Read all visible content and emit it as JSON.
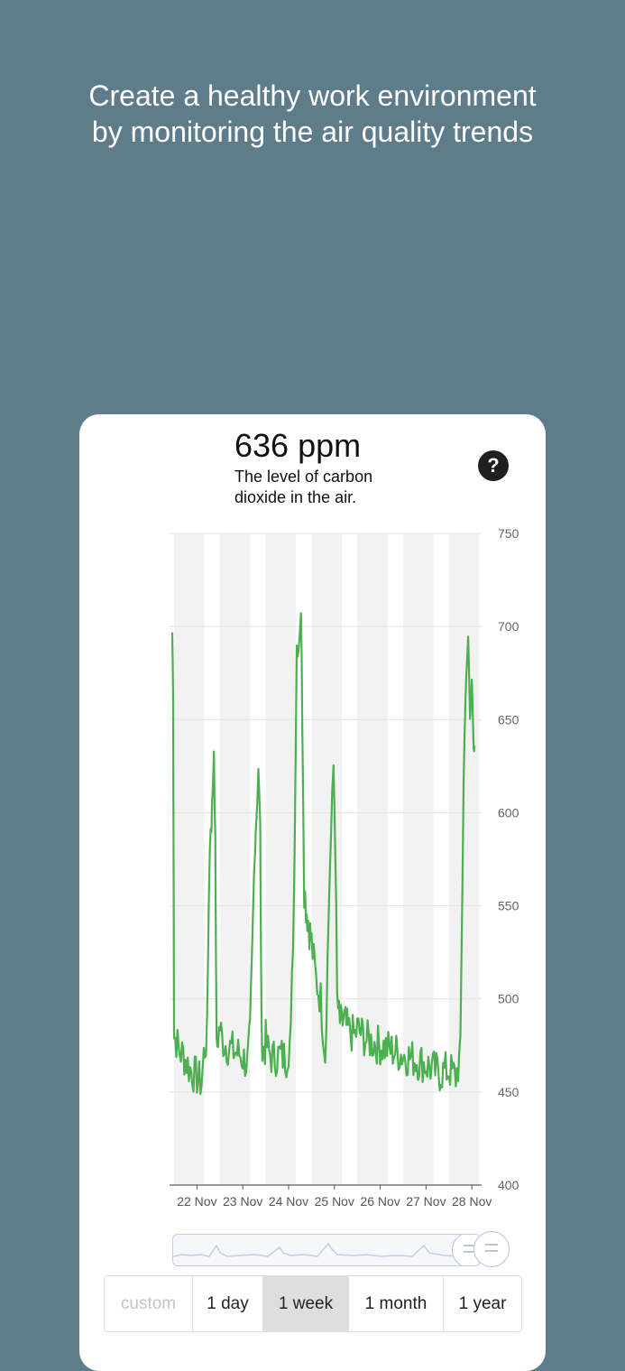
{
  "headline": "Create a healthy work environment by monitoring the air quality trends",
  "reading": {
    "value": "636 ppm",
    "description": "The level of carbon dioxide in the air."
  },
  "help_label": "?",
  "colors": {
    "background": "#5f7c8a",
    "line": "#4caf50",
    "band": "#f2f2f2",
    "active_range": "#dedede"
  },
  "range_buttons": [
    {
      "label": "custom",
      "state": "disabled"
    },
    {
      "label": "1 day",
      "state": "normal"
    },
    {
      "label": "1 week",
      "state": "active"
    },
    {
      "label": "1 month",
      "state": "normal"
    },
    {
      "label": "1 year",
      "state": "normal"
    }
  ],
  "chart_data": {
    "type": "line",
    "title": "",
    "xlabel": "",
    "ylabel": "",
    "ylim": [
      400,
      750
    ],
    "y_ticks": [
      750,
      700,
      650,
      600,
      550,
      500,
      450,
      400
    ],
    "x_ticks": [
      "22 Nov",
      "23 Nov",
      "24 Nov",
      "25 Nov",
      "26 Nov",
      "27 Nov",
      "28 Nov"
    ],
    "grid": true,
    "legend": "none",
    "x_unit": "days since start of window (0 = 22 Nov 00:00)",
    "series": [
      {
        "name": "CO2",
        "x": [
          -0.04,
          -0.02,
          0.0,
          0.05,
          0.1,
          0.2,
          0.35,
          0.5,
          0.6,
          0.65,
          0.72,
          0.76,
          0.8,
          0.83,
          0.87,
          0.9,
          0.93,
          0.96,
          1.0,
          1.05,
          1.15,
          1.3,
          1.45,
          1.6,
          1.66,
          1.72,
          1.77,
          1.8,
          1.84,
          1.88,
          1.91,
          1.94,
          1.97,
          2.0,
          2.05,
          2.15,
          2.3,
          2.45,
          2.55,
          2.62,
          2.68,
          2.72,
          2.77,
          2.8,
          2.84,
          2.88,
          2.91,
          2.94,
          2.97,
          3.0,
          3.05,
          3.1,
          3.2,
          3.3,
          3.4,
          3.48,
          3.52,
          3.56,
          3.6,
          3.62,
          3.66,
          3.7,
          3.73,
          3.76,
          3.8,
          3.85,
          3.95,
          4.0,
          4.2,
          4.4,
          4.6,
          4.8,
          5.0,
          5.2,
          5.4,
          5.6,
          5.8,
          6.0,
          6.15,
          6.25,
          6.32,
          6.38,
          6.42,
          6.46,
          6.5,
          6.54,
          6.56
        ],
        "values": [
          697,
          665,
          480,
          478,
          472,
          470,
          462,
          458,
          455,
          470,
          480,
          560,
          595,
          600,
          635,
          580,
          470,
          480,
          485,
          478,
          475,
          472,
          470,
          465,
          480,
          540,
          590,
          600,
          625,
          590,
          480,
          475,
          470,
          478,
          472,
          468,
          470,
          468,
          480,
          560,
          690,
          690,
          710,
          650,
          560,
          550,
          545,
          540,
          535,
          530,
          520,
          510,
          500,
          470,
          570,
          625,
          585,
          500,
          490,
          488,
          485,
          490,
          488,
          485,
          483,
          482,
          480,
          484,
          478,
          476,
          474,
          472,
          470,
          468,
          466,
          463,
          460,
          462,
          458,
          470,
          620,
          680,
          690,
          650,
          670,
          640,
          636
        ]
      }
    ]
  }
}
